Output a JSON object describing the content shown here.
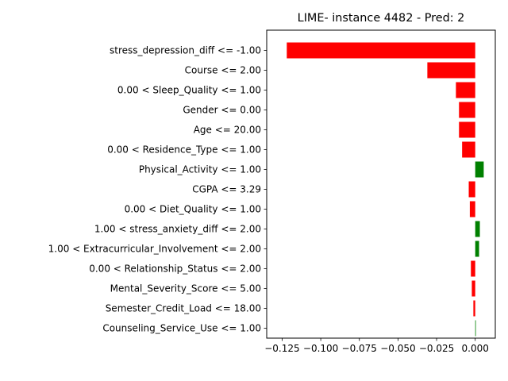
{
  "chart_data": {
    "type": "bar",
    "orientation": "horizontal",
    "title": "LIME- instance 4482 - Pred: 2",
    "xlabel": "",
    "ylabel": "",
    "xlim": [
      -0.135,
      0.013
    ],
    "grid": false,
    "legend": "none",
    "positive_color": "#008000",
    "negative_color": "#ff0000",
    "categories": [
      "stress_depression_diff <= -1.00",
      "Course <= 2.00",
      "0.00 < Sleep_Quality <= 1.00",
      "Gender <= 0.00",
      "Age <= 20.00",
      "0.00 < Residence_Type <= 1.00",
      "Physical_Activity <= 1.00",
      "CGPA <= 3.29",
      "0.00 < Diet_Quality <= 1.00",
      "1.00 < stress_anxiety_diff <= 2.00",
      "1.00 < Extracurricular_Involvement <= 2.00",
      "0.00 < Relationship_Status <= 2.00",
      "Mental_Severity_Score <= 5.00",
      "Semester_Credit_Load <= 18.00",
      "Counseling_Service_Use <= 1.00"
    ],
    "values": [
      -0.122,
      -0.031,
      -0.0125,
      -0.0105,
      -0.0105,
      -0.0085,
      0.0055,
      -0.0042,
      -0.0035,
      0.003,
      0.0025,
      -0.0028,
      -0.0022,
      -0.0012,
      0.0004
    ],
    "xticks": [
      -0.125,
      -0.1,
      -0.075,
      -0.05,
      -0.025,
      0.0
    ],
    "xtick_labels": [
      "−0.125",
      "−0.100",
      "−0.075",
      "−0.050",
      "−0.025",
      "0.000"
    ]
  }
}
